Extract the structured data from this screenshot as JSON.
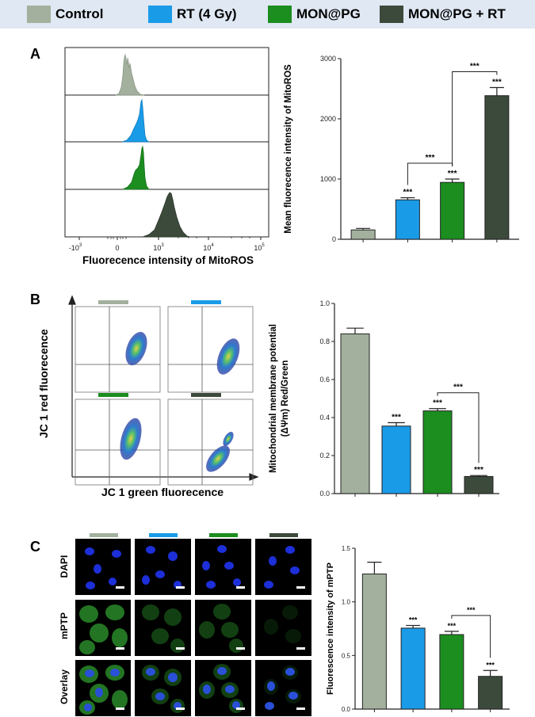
{
  "legend": [
    {
      "label": "Control",
      "color": "#a2b09d"
    },
    {
      "label": "RT (4 Gy)",
      "color": "#1a9be8"
    },
    {
      "label": "MON@PG",
      "color": "#1c8d1f"
    },
    {
      "label": "MON@PG + RT",
      "color": "#3c4a3c"
    }
  ],
  "panels": {
    "a": "A",
    "b": "B",
    "c": "C"
  },
  "histogram": {
    "xlabel": "Fluorecence intensity of MitoROS",
    "ticks": [
      {
        "base": "-10",
        "exp": "3"
      },
      {
        "base": "0",
        "exp": ""
      },
      {
        "base": "10",
        "exp": "3"
      },
      {
        "base": "10",
        "exp": "4"
      },
      {
        "base": "10",
        "exp": "5"
      }
    ]
  },
  "flow": {
    "ylabel": "JC 1 red fluorecence",
    "xlabel": "JC 1 green fluorecence"
  },
  "microscopy": {
    "rows": [
      "DAPI",
      "mPTP",
      "Overlay"
    ]
  },
  "chart_data": [
    {
      "id": "mitoros",
      "type": "bar",
      "title": "",
      "categories": [
        "Control",
        "RT (4 Gy)",
        "MON@PG",
        "MON@PG + RT"
      ],
      "values": [
        155,
        655,
        945,
        2385
      ],
      "errors": [
        25,
        35,
        55,
        135
      ],
      "significance": [
        "",
        "***",
        "***",
        "***"
      ],
      "brackets": [
        {
          "from": 1,
          "to": 2,
          "label": "***"
        },
        {
          "from": 2,
          "to": 3,
          "label": "***"
        }
      ],
      "xlabel": "",
      "ylabel": "Mean fluorecence intensity of MitoROS",
      "ylim": [
        0,
        3000
      ],
      "yticks": [
        "0",
        "1000",
        "2000",
        "3000"
      ]
    },
    {
      "id": "mmp",
      "type": "bar",
      "title": "",
      "categories": [
        "Control",
        "RT (4 Gy)",
        "MON@PG",
        "MON@PG + RT"
      ],
      "values": [
        0.84,
        0.355,
        0.435,
        0.09
      ],
      "errors": [
        0.03,
        0.018,
        0.012,
        0.005
      ],
      "significance": [
        "",
        "***",
        "***",
        "***"
      ],
      "brackets": [
        {
          "from": 2,
          "to": 3,
          "label": "***"
        }
      ],
      "xlabel": "",
      "ylabel_line1": "Mitochondrial membrane potential",
      "ylabel_line2": "(ΔΨm) Red/Green",
      "ylim": [
        0,
        1.0
      ],
      "yticks": [
        "0.0",
        "0.2",
        "0.4",
        "0.6",
        "0.8",
        "1.0"
      ]
    },
    {
      "id": "mptp",
      "type": "bar",
      "title": "",
      "categories": [
        "Control",
        "RT (4 Gy)",
        "MON@PG",
        "MON@PG + RT"
      ],
      "values": [
        1.26,
        0.755,
        0.695,
        0.305
      ],
      "errors": [
        0.11,
        0.025,
        0.03,
        0.055
      ],
      "significance": [
        "",
        "***",
        "***",
        "***"
      ],
      "brackets": [
        {
          "from": 2,
          "to": 3,
          "label": "***"
        }
      ],
      "xlabel": "",
      "ylabel": "Fluorescence intensity of mPTP",
      "ylim": [
        0,
        1.5
      ],
      "yticks": [
        "0.0",
        "0.5",
        "1.0",
        "1.5"
      ]
    }
  ]
}
